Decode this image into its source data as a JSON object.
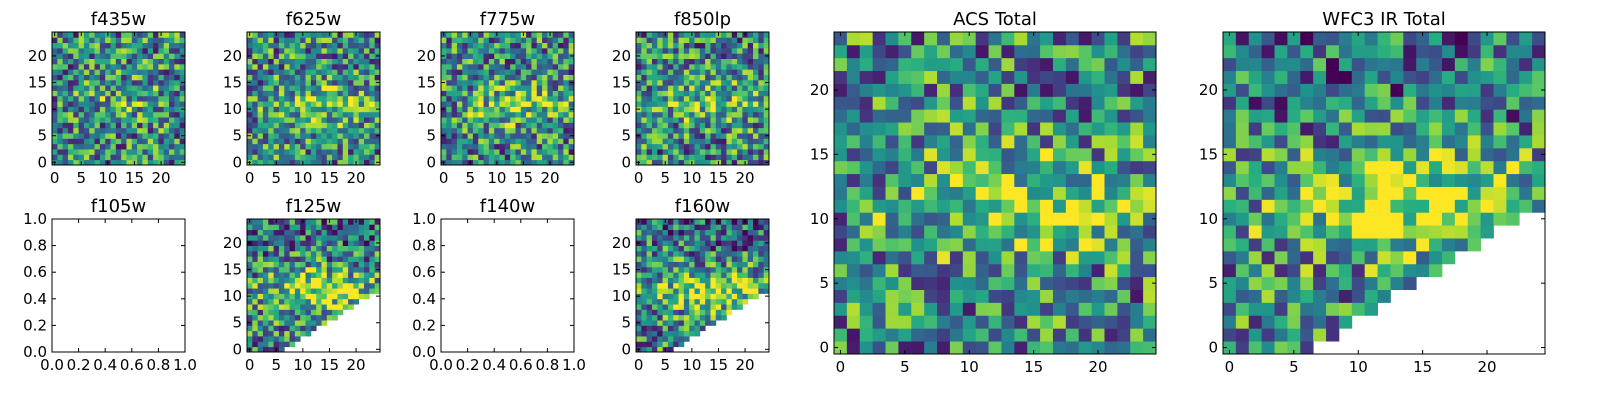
{
  "figure": {
    "colormap": "viridis",
    "colors": {
      "low": "#440154",
      "mid": "#21918c",
      "high": "#fde725",
      "nodata": "#ffffff",
      "axis": "#000000"
    }
  },
  "chart_data": [
    {
      "type": "heatmap",
      "title": "f435w",
      "grid_size": 25,
      "seed": 1,
      "mask": "none",
      "band_strength": 0.15,
      "xticks": [
        "0",
        "5",
        "10",
        "15",
        "20"
      ],
      "yticks": [
        "0",
        "5",
        "10",
        "15",
        "20"
      ],
      "xlim": [
        -0.5,
        24.5
      ],
      "ylim": [
        -0.5,
        24.5
      ]
    },
    {
      "type": "heatmap",
      "title": "f625w",
      "grid_size": 25,
      "seed": 2,
      "mask": "none",
      "band_strength": 0.3,
      "xticks": [
        "0",
        "5",
        "10",
        "15",
        "20"
      ],
      "yticks": [
        "0",
        "5",
        "10",
        "15",
        "20"
      ],
      "xlim": [
        -0.5,
        24.5
      ],
      "ylim": [
        -0.5,
        24.5
      ]
    },
    {
      "type": "heatmap",
      "title": "f775w",
      "grid_size": 25,
      "seed": 3,
      "mask": "none",
      "band_strength": 0.3,
      "xticks": [
        "0",
        "5",
        "10",
        "15",
        "20"
      ],
      "yticks": [
        "0",
        "5",
        "10",
        "15",
        "20"
      ],
      "xlim": [
        -0.5,
        24.5
      ],
      "ylim": [
        -0.5,
        24.5
      ]
    },
    {
      "type": "heatmap",
      "title": "f850lp",
      "grid_size": 25,
      "seed": 4,
      "mask": "none",
      "band_strength": 0.25,
      "xticks": [
        "0",
        "5",
        "10",
        "15",
        "20"
      ],
      "yticks": [
        "0",
        "5",
        "10",
        "15",
        "20"
      ],
      "xlim": [
        -0.5,
        24.5
      ],
      "ylim": [
        -0.5,
        24.5
      ]
    },
    {
      "type": "empty",
      "title": "f105w",
      "xticks": [
        "0.0",
        "0.2",
        "0.4",
        "0.6",
        "0.8",
        "1.0"
      ],
      "yticks": [
        "0.0",
        "0.2",
        "0.4",
        "0.6",
        "0.8",
        "1.0"
      ],
      "xlim": [
        0,
        1
      ],
      "ylim": [
        0,
        1
      ]
    },
    {
      "type": "heatmap",
      "title": "f125w",
      "grid_size": 25,
      "seed": 5,
      "mask": "wfc3_wedge",
      "band_strength": 0.45,
      "xticks": [
        "0",
        "5",
        "10",
        "15",
        "20"
      ],
      "yticks": [
        "0",
        "5",
        "10",
        "15",
        "20"
      ],
      "xlim": [
        -0.5,
        24.5
      ],
      "ylim": [
        -0.5,
        24.5
      ]
    },
    {
      "type": "empty",
      "title": "f140w",
      "xticks": [
        "0.0",
        "0.2",
        "0.4",
        "0.6",
        "0.8",
        "1.0"
      ],
      "yticks": [
        "0.0",
        "0.2",
        "0.4",
        "0.6",
        "0.8",
        "1.0"
      ],
      "xlim": [
        0,
        1
      ],
      "ylim": [
        0,
        1
      ]
    },
    {
      "type": "heatmap",
      "title": "f160w",
      "grid_size": 25,
      "seed": 6,
      "mask": "wfc3_wedge",
      "band_strength": 0.45,
      "xticks": [
        "0",
        "5",
        "10",
        "15",
        "20"
      ],
      "yticks": [
        "0",
        "5",
        "10",
        "15",
        "20"
      ],
      "xlim": [
        -0.5,
        24.5
      ],
      "ylim": [
        -0.5,
        24.5
      ]
    },
    {
      "type": "heatmap",
      "title": "ACS Total",
      "grid_size": 25,
      "seed": 7,
      "mask": "none",
      "band_strength": 0.4,
      "xticks": [
        "0",
        "5",
        "10",
        "15",
        "20"
      ],
      "yticks": [
        "0",
        "5",
        "10",
        "15",
        "20"
      ],
      "xlim": [
        -0.5,
        24.5
      ],
      "ylim": [
        -0.5,
        24.5
      ]
    },
    {
      "type": "heatmap",
      "title": "WFC3 IR Total",
      "grid_size": 25,
      "seed": 8,
      "mask": "wfc3_wedge",
      "band_strength": 0.55,
      "xticks": [
        "0",
        "5",
        "10",
        "15",
        "20"
      ],
      "yticks": [
        "0",
        "5",
        "10",
        "15",
        "20"
      ],
      "xlim": [
        -0.5,
        24.5
      ],
      "ylim": [
        -0.5,
        24.5
      ]
    }
  ]
}
